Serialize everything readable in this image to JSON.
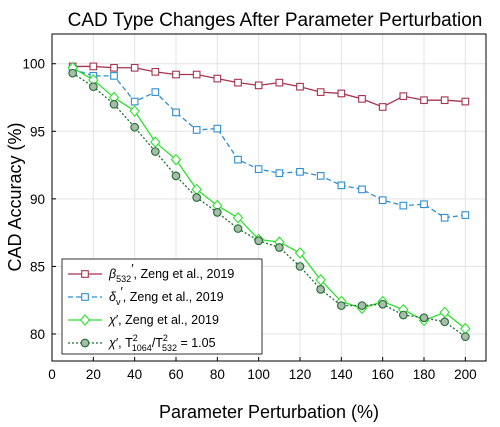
{
  "chart_data": {
    "type": "line",
    "title": "CAD Type Changes After Parameter Perturbation",
    "xlabel": "Parameter Perturbation (%)",
    "ylabel": "CAD Accuracy (%)",
    "xlim": [
      0,
      210
    ],
    "ylim": [
      78,
      102.2
    ],
    "xticks": [
      0,
      20,
      40,
      60,
      80,
      100,
      120,
      140,
      160,
      180,
      200
    ],
    "yticks": [
      80,
      85,
      90,
      95,
      100
    ],
    "grid": true,
    "legend_position": "bottom-left",
    "x": [
      10,
      20,
      30,
      40,
      50,
      60,
      70,
      80,
      90,
      100,
      110,
      120,
      130,
      140,
      150,
      160,
      170,
      180,
      190,
      200
    ],
    "series": [
      {
        "name": "β532′, Zeng et al., 2019",
        "legend_html": "<tspan font-style='italic'>β</tspan><tspan font-size='9' dy='4'>532</tspan><tspan dy='-9'>′</tspan><tspan dy='5'>, Zeng et al., 2019</tspan>",
        "color": "#a83250",
        "line_style": "solid",
        "marker": "square",
        "marker_fill": "#ffffff",
        "values": [
          99.8,
          99.8,
          99.7,
          99.7,
          99.4,
          99.2,
          99.2,
          98.9,
          98.6,
          98.4,
          98.6,
          98.3,
          97.9,
          97.8,
          97.4,
          96.8,
          97.6,
          97.3,
          97.3,
          97.2
        ]
      },
      {
        "name": "δv′, Zeng et al., 2019",
        "legend_html": "<tspan font-style='italic'>δ</tspan><tspan font-size='9' dy='4'>v</tspan><tspan dy='-9'>′</tspan><tspan dy='5'>, Zeng et al., 2019</tspan>",
        "color": "#2e8fd0",
        "line_style": "dashed",
        "marker": "square",
        "marker_fill": "#ffffff",
        "values": [
          99.6,
          99.1,
          99.1,
          97.2,
          97.9,
          96.4,
          95.1,
          95.2,
          92.9,
          92.2,
          91.9,
          92.0,
          91.7,
          91.0,
          90.7,
          89.9,
          89.5,
          89.6,
          88.6,
          88.8
        ]
      },
      {
        "name": "χ′, Zeng et al., 2019",
        "legend_html": "<tspan font-style='italic'>χ</tspan><tspan>′, Zeng et al., 2019</tspan>",
        "color": "#2ee02e",
        "line_style": "solid",
        "marker": "diamond",
        "marker_fill": "#ffffff",
        "values": [
          99.7,
          98.8,
          97.5,
          96.5,
          94.2,
          92.9,
          90.7,
          89.5,
          88.6,
          87.0,
          86.8,
          86.0,
          84.0,
          82.4,
          81.9,
          82.4,
          81.8,
          81.0,
          81.6,
          80.4
        ]
      },
      {
        "name": "χ′, T1064²/T532² = 1.05",
        "legend_html": "<tspan font-style='italic'>χ</tspan><tspan>′, T</tspan><tspan font-size='9' dy='-6'>2</tspan><tspan font-size='9' dx='-6' dy='10'>1064</tspan><tspan dy='-4'>/T</tspan><tspan font-size='9' dy='-6'>2</tspan><tspan font-size='9' dx='-6' dy='10'>532</tspan><tspan dy='-4'> = 1.05</tspan>",
        "color": "#1f6e35",
        "line_style": "dotted",
        "marker": "circle",
        "marker_fill": "#a8bca8",
        "values": [
          99.3,
          98.3,
          97.0,
          95.3,
          93.5,
          91.7,
          90.1,
          89.0,
          87.8,
          86.9,
          86.4,
          85.0,
          83.3,
          82.1,
          82.1,
          82.2,
          81.4,
          81.2,
          80.9,
          79.8
        ]
      }
    ]
  }
}
